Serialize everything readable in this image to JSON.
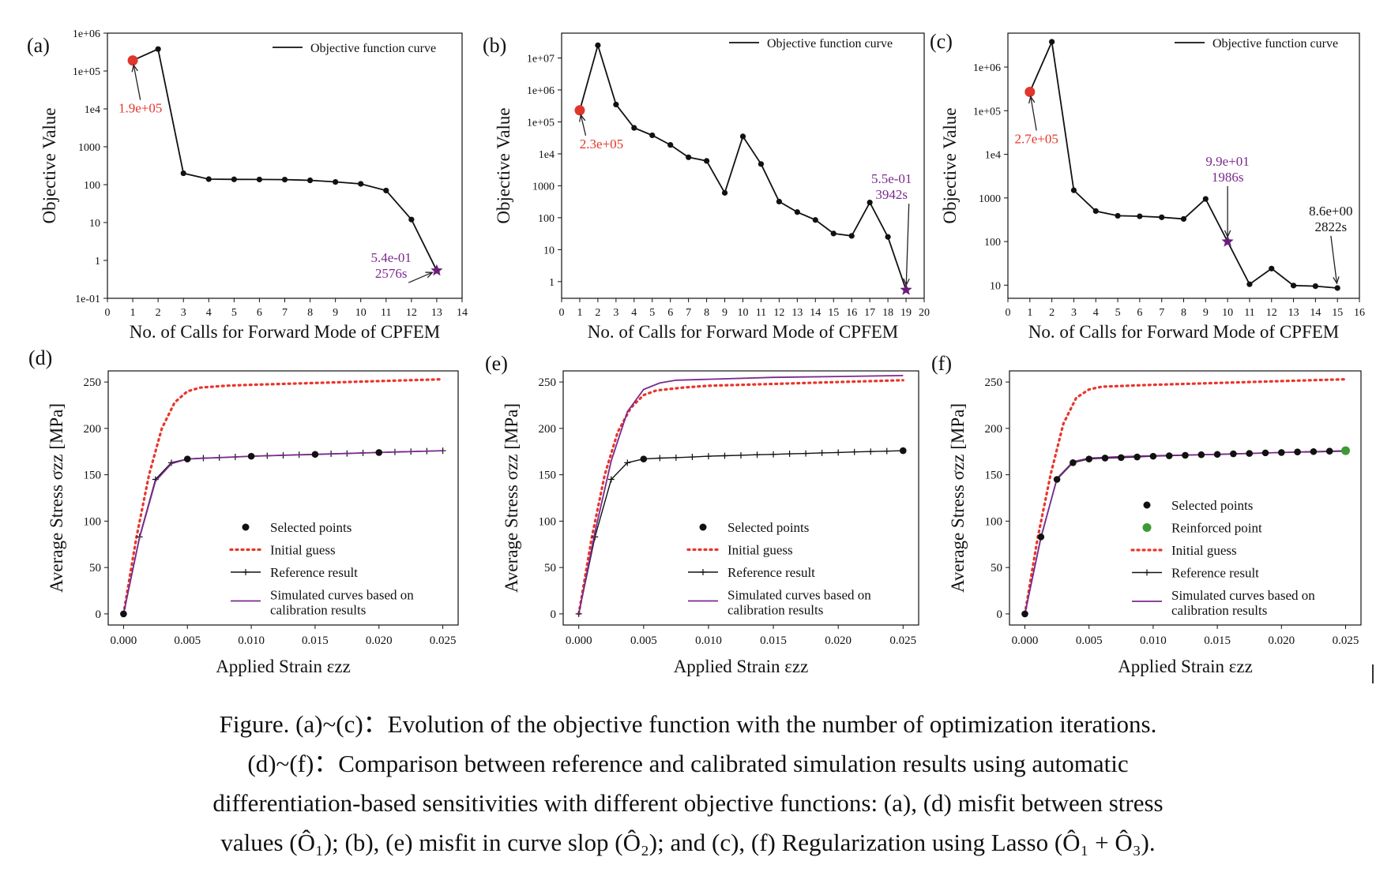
{
  "chart_data": [
    {
      "panel_label": "(a)",
      "type": "line",
      "yscale": "log",
      "xlabel": "No. of Calls for Forward Mode of CPFEM",
      "ylabel": "Objective Value",
      "xlim": [
        0,
        14
      ],
      "xticks": [
        "0",
        "1",
        "2",
        "3",
        "4",
        "5",
        "6",
        "7",
        "8",
        "9",
        "10",
        "11",
        "12",
        "13",
        "14"
      ],
      "ylim": [
        0.1,
        1000000
      ],
      "yticks": [
        {
          "v": 0.1,
          "t": "1e-01"
        },
        {
          "v": 1,
          "t": "1"
        },
        {
          "v": 10,
          "t": "10"
        },
        {
          "v": 100,
          "t": "100"
        },
        {
          "v": 1000,
          "t": "1000"
        },
        {
          "v": 10000,
          "t": "1e4"
        },
        {
          "v": 100000,
          "t": "1e+05"
        },
        {
          "v": 1000000,
          "t": "1e+06"
        }
      ],
      "legend_position": "top-right",
      "series": [
        {
          "name": "Objective function curve",
          "x": [
            1,
            2,
            3,
            4,
            5,
            6,
            7,
            8,
            9,
            10,
            11,
            12,
            13
          ],
          "y": [
            190000,
            380000,
            200,
            140,
            138,
            137,
            136,
            130,
            118,
            105,
            70,
            12,
            0.54
          ]
        }
      ],
      "start_marker": {
        "x": 1,
        "y": 190000
      },
      "end_marker": {
        "x": 13,
        "y": 0.54
      },
      "annotations": [
        {
          "lines": [
            "1.9e+05"
          ],
          "color": "#e0362b",
          "tx": 1.3,
          "ty": 8000,
          "ax": 1,
          "ay": 190000
        },
        {
          "lines": [
            "5.4e-01",
            "2576s"
          ],
          "color": "#7b2a8e",
          "tx": 11.2,
          "ty": 0.9,
          "ax": 13,
          "ay": 0.54
        }
      ]
    },
    {
      "panel_label": "(b)",
      "type": "line",
      "yscale": "log",
      "xlabel": "No. of Calls for Forward Mode of CPFEM",
      "ylabel": "Objective Value",
      "xlim": [
        0,
        20
      ],
      "xticks": [
        "0",
        "1",
        "2",
        "3",
        "4",
        "5",
        "6",
        "7",
        "8",
        "9",
        "10",
        "11",
        "12",
        "13",
        "14",
        "15",
        "16",
        "17",
        "18",
        "19",
        "20"
      ],
      "ylim": [
        0.3,
        60000000
      ],
      "yticks": [
        {
          "v": 1,
          "t": "1"
        },
        {
          "v": 10,
          "t": "10"
        },
        {
          "v": 100,
          "t": "100"
        },
        {
          "v": 1000,
          "t": "1000"
        },
        {
          "v": 10000,
          "t": "1e4"
        },
        {
          "v": 100000,
          "t": "1e+05"
        },
        {
          "v": 1000000,
          "t": "1e+06"
        },
        {
          "v": 10000000,
          "t": "1e+07"
        }
      ],
      "legend_position": "top-right",
      "series": [
        {
          "name": "Objective function curve",
          "x": [
            1,
            2,
            3,
            4,
            5,
            6,
            7,
            8,
            9,
            10,
            11,
            12,
            13,
            14,
            15,
            16,
            17,
            18,
            19
          ],
          "y": [
            230000,
            25000000,
            350000,
            65000,
            38000,
            19000,
            7800,
            6000,
            600,
            35000,
            4800,
            320,
            150,
            85,
            32,
            27,
            300,
            25,
            0.55
          ]
        }
      ],
      "start_marker": {
        "x": 1,
        "y": 230000
      },
      "end_marker": {
        "x": 19,
        "y": 0.55
      },
      "annotations": [
        {
          "lines": [
            "2.3e+05"
          ],
          "color": "#e0362b",
          "tx": 2.2,
          "ty": 15000,
          "ax": 1,
          "ay": 230000
        },
        {
          "lines": [
            "5.5e-01",
            "3942s"
          ],
          "color": "#7b2a8e",
          "tx": 18.2,
          "ty": 1200,
          "ax": 19,
          "ay": 0.55
        }
      ]
    },
    {
      "panel_label": "(c)",
      "type": "line",
      "yscale": "log",
      "xlabel": "No. of Calls for Forward Mode of CPFEM",
      "ylabel": "Objective Value",
      "xlim": [
        0,
        16
      ],
      "xticks": [
        "0",
        "1",
        "2",
        "3",
        "4",
        "5",
        "6",
        "7",
        "8",
        "9",
        "10",
        "11",
        "12",
        "13",
        "14",
        "15",
        "16"
      ],
      "ylim": [
        5,
        6000000
      ],
      "yticks": [
        {
          "v": 10,
          "t": "10"
        },
        {
          "v": 100,
          "t": "100"
        },
        {
          "v": 1000,
          "t": "1000"
        },
        {
          "v": 10000,
          "t": "1e4"
        },
        {
          "v": 100000,
          "t": "1e+05"
        },
        {
          "v": 1000000,
          "t": "1e+06"
        }
      ],
      "legend_position": "top-right",
      "series": [
        {
          "name": "Objective function curve",
          "x": [
            1,
            2,
            3,
            4,
            5,
            6,
            7,
            8,
            9,
            10,
            11,
            12,
            13,
            14,
            15
          ],
          "y": [
            270000,
            3800000,
            1500,
            500,
            390,
            380,
            360,
            330,
            950,
            100,
            10.5,
            24,
            9.8,
            9.5,
            8.6
          ]
        }
      ],
      "start_marker": {
        "x": 1,
        "y": 270000
      },
      "end_marker": {
        "x": 10,
        "y": 100
      },
      "annotations": [
        {
          "lines": [
            "2.7e+05"
          ],
          "color": "#e0362b",
          "tx": 1.3,
          "ty": 18000,
          "ax": 1,
          "ay": 270000
        },
        {
          "lines": [
            "9.9e+01",
            "1986s"
          ],
          "color": "#7b2a8e",
          "tx": 10.0,
          "ty": 5500,
          "ax": 10,
          "ay": 100
        },
        {
          "lines": [
            "8.6e+00",
            "2822s"
          ],
          "color": "#111111",
          "tx": 14.7,
          "ty": 400,
          "ax": 15,
          "ay": 8.6
        }
      ]
    },
    {
      "panel_label": "(d)",
      "type": "line",
      "xlabel": "Applied Strain εzz",
      "ylabel": "Average Stress σzz [MPa]",
      "xlim": [
        -0.0012,
        0.0262
      ],
      "xticks": [
        "0.000",
        "0.005",
        "0.010",
        "0.015",
        "0.020",
        "0.025"
      ],
      "ylim": [
        -12,
        262
      ],
      "yticks": [
        "0",
        "50",
        "100",
        "150",
        "200",
        "250"
      ],
      "legend_position": "lower-right",
      "initial_guess": {
        "x": [
          0,
          0.001,
          0.002,
          0.003,
          0.004,
          0.005,
          0.006,
          0.008,
          0.01,
          0.015,
          0.02,
          0.025
        ],
        "y": [
          0,
          82,
          150,
          200,
          228,
          240,
          244,
          246,
          247,
          249,
          251,
          253
        ]
      },
      "reference": {
        "x": [
          0,
          0.00125,
          0.0025,
          0.00375,
          0.005,
          0.00625,
          0.0075,
          0.00875,
          0.01,
          0.01125,
          0.0125,
          0.01375,
          0.015,
          0.01625,
          0.0175,
          0.01875,
          0.02,
          0.02125,
          0.0225,
          0.02375,
          0.025
        ],
        "y": [
          0,
          83,
          145,
          163,
          167,
          168,
          168.5,
          169.2,
          170,
          170.5,
          171,
          171.6,
          172,
          172.6,
          173,
          173.6,
          174,
          174.6,
          175,
          175.5,
          176
        ]
      },
      "simulated": {
        "x": [
          0,
          0.00125,
          0.0025,
          0.00375,
          0.005,
          0.01,
          0.015,
          0.02,
          0.025
        ],
        "y": [
          0,
          82,
          143,
          162,
          167,
          170,
          172,
          174,
          176
        ]
      },
      "selected_points": {
        "x": [
          0,
          0.005,
          0.01,
          0.015,
          0.02
        ],
        "y": [
          0,
          167,
          170,
          172,
          174
        ]
      },
      "legend": [
        "Selected points",
        "Initial guess",
        "Reference result",
        "Simulated curves based on",
        "calibration results"
      ]
    },
    {
      "panel_label": "(e)",
      "type": "line",
      "xlabel": "Applied Strain εzz",
      "ylabel": "Average Stress σzz [MPa]",
      "xlim": [
        -0.0012,
        0.0262
      ],
      "xticks": [
        "0.000",
        "0.005",
        "0.010",
        "0.015",
        "0.020",
        "0.025"
      ],
      "ylim": [
        -12,
        262
      ],
      "yticks": [
        "0",
        "50",
        "100",
        "150",
        "200",
        "250"
      ],
      "legend_position": "lower-right",
      "initial_guess": {
        "x": [
          0,
          0.001,
          0.002,
          0.003,
          0.004,
          0.005,
          0.006,
          0.008,
          0.01,
          0.015,
          0.02,
          0.025
        ],
        "y": [
          0,
          82,
          150,
          196,
          222,
          236,
          241,
          244,
          246,
          248,
          250,
          252
        ]
      },
      "reference": {
        "x": [
          0,
          0.00125,
          0.0025,
          0.00375,
          0.005,
          0.00625,
          0.0075,
          0.00875,
          0.01,
          0.01125,
          0.0125,
          0.01375,
          0.015,
          0.01625,
          0.0175,
          0.01875,
          0.02,
          0.02125,
          0.0225,
          0.02375,
          0.025
        ],
        "y": [
          0,
          83,
          145,
          163,
          167,
          168,
          168.5,
          169.2,
          170,
          170.5,
          171,
          171.6,
          172,
          172.6,
          173,
          173.6,
          174,
          174.6,
          175,
          175.5,
          176
        ]
      },
      "simulated": {
        "x": [
          0,
          0.00125,
          0.0025,
          0.00375,
          0.005,
          0.00625,
          0.0075,
          0.01,
          0.015,
          0.02,
          0.025
        ],
        "y": [
          0,
          88,
          165,
          218,
          242,
          249,
          252,
          253,
          255,
          256,
          257
        ]
      },
      "selected_points": {
        "x": [
          0.005,
          0.025
        ],
        "y": [
          167,
          176
        ]
      },
      "legend": [
        "Selected points",
        "Initial guess",
        "Reference result",
        "Simulated curves based on",
        "calibration results"
      ]
    },
    {
      "panel_label": "(f)",
      "type": "line",
      "xlabel": "Applied Strain εzz",
      "ylabel": "Average Stress σzz [MPa]",
      "xlim": [
        -0.0012,
        0.0262
      ],
      "xticks": [
        "0.000",
        "0.005",
        "0.010",
        "0.015",
        "0.020",
        "0.025"
      ],
      "ylim": [
        -12,
        262
      ],
      "yticks": [
        "0",
        "50",
        "100",
        "150",
        "200",
        "250"
      ],
      "legend_position": "lower-right",
      "initial_guess": {
        "x": [
          0,
          0.001,
          0.002,
          0.003,
          0.004,
          0.005,
          0.006,
          0.008,
          0.01,
          0.015,
          0.02,
          0.025
        ],
        "y": [
          0,
          82,
          150,
          205,
          233,
          242,
          245,
          246,
          247,
          249,
          251,
          253
        ]
      },
      "reference": {
        "x": [
          0,
          0.00125,
          0.0025,
          0.00375,
          0.005,
          0.00625,
          0.0075,
          0.00875,
          0.01,
          0.01125,
          0.0125,
          0.01375,
          0.015,
          0.01625,
          0.0175,
          0.01875,
          0.02,
          0.02125,
          0.0225,
          0.02375,
          0.025
        ],
        "y": [
          0,
          83,
          145,
          163,
          167,
          168,
          168.5,
          169.2,
          170,
          170.5,
          171,
          171.6,
          172,
          172.6,
          173,
          173.6,
          174,
          174.6,
          175,
          175.5,
          176
        ]
      },
      "simulated": {
        "x": [
          0,
          0.00125,
          0.0025,
          0.00375,
          0.005,
          0.0075,
          0.01,
          0.015,
          0.02,
          0.025
        ],
        "y": [
          0,
          82,
          146,
          164,
          168,
          169.5,
          170.5,
          172,
          174,
          175.5
        ]
      },
      "selected_points": {
        "x": [
          0,
          0.00125,
          0.0025,
          0.00375,
          0.005,
          0.00625,
          0.0075,
          0.00875,
          0.01,
          0.01125,
          0.0125,
          0.01375,
          0.015,
          0.01625,
          0.0175,
          0.01875,
          0.02,
          0.02125,
          0.0225,
          0.02375
        ],
        "y": [
          0,
          83,
          145,
          163,
          167,
          168,
          168.5,
          169.2,
          170,
          170.5,
          171,
          171.6,
          172,
          172.6,
          173,
          173.6,
          174,
          174.6,
          175,
          175.5
        ]
      },
      "reinforced_point": {
        "x": 0.025,
        "y": 176
      },
      "legend": [
        "Selected points",
        "Reinforced point",
        "Initial guess",
        "Reference result",
        "Simulated curves based on",
        "calibration results"
      ]
    }
  ],
  "colors": {
    "initial_guess": "#e8362b",
    "reference": "#111111",
    "simulated": "#7b2a8e",
    "start_point": "#e0362b",
    "end_star": "#6a1f7a",
    "reinforced": "#3c9a35",
    "axis": "#111111"
  },
  "caption": {
    "line1": "Figure. (a)~(c)：Evolution of the objective function with the number of optimization iterations.",
    "line2": "(d)~(f)：Comparison between reference and calibrated simulation results using automatic",
    "line3": "differentiation-based sensitivities with different objective functions: (a), (d) misfit between stress",
    "line4": "values (Ô₁); (b), (e) misfit in curve slop (Ô₂); and (c), (f) Regularization using Lasso (Ô₁ + Ô₃)."
  }
}
